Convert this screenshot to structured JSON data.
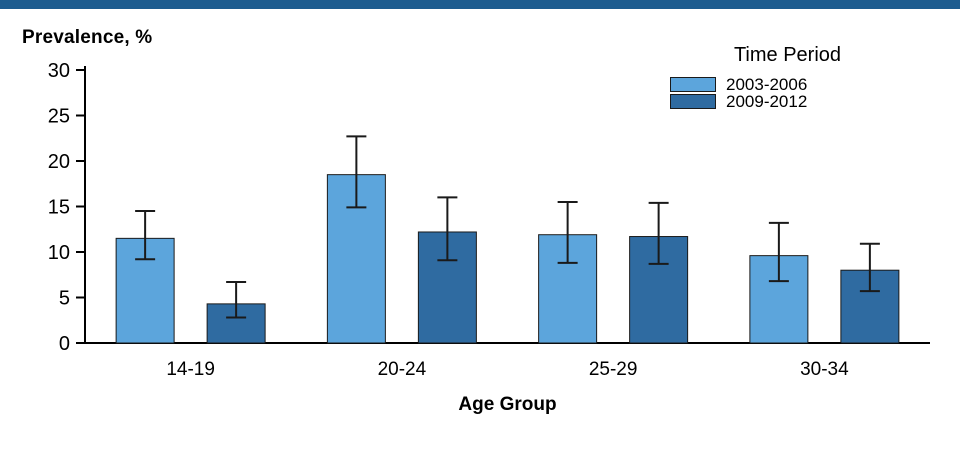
{
  "colors": {
    "banner": "#1D5C8F",
    "axis": "#000000",
    "error_bar": "#1A1A1A",
    "background": "#FFFFFF"
  },
  "chart_data": {
    "type": "bar",
    "title": "",
    "ylabel": "Prevalence, %",
    "xlabel": "Age Group",
    "legend_title": "Time Period",
    "legend_position": "top-right",
    "grid": false,
    "ylim": [
      0,
      30
    ],
    "yticks": [
      0,
      5,
      10,
      15,
      20,
      25,
      30
    ],
    "categories": [
      "14-19",
      "20-24",
      "25-29",
      "30-34"
    ],
    "series": [
      {
        "name": "2003-2006",
        "color": "#5CA5DC",
        "edge": "#1A1A1A",
        "values": [
          11.5,
          18.5,
          11.9,
          9.6
        ],
        "err_low": [
          9.2,
          14.9,
          8.8,
          6.8
        ],
        "err_high": [
          14.5,
          22.7,
          15.5,
          13.2
        ]
      },
      {
        "name": "2009-2012",
        "color": "#2F6BA1",
        "edge": "#1A1A1A",
        "values": [
          4.3,
          12.2,
          11.7,
          8.0
        ],
        "err_low": [
          2.8,
          9.1,
          8.7,
          5.7
        ],
        "err_high": [
          6.7,
          16.0,
          15.4,
          10.9
        ]
      }
    ]
  }
}
